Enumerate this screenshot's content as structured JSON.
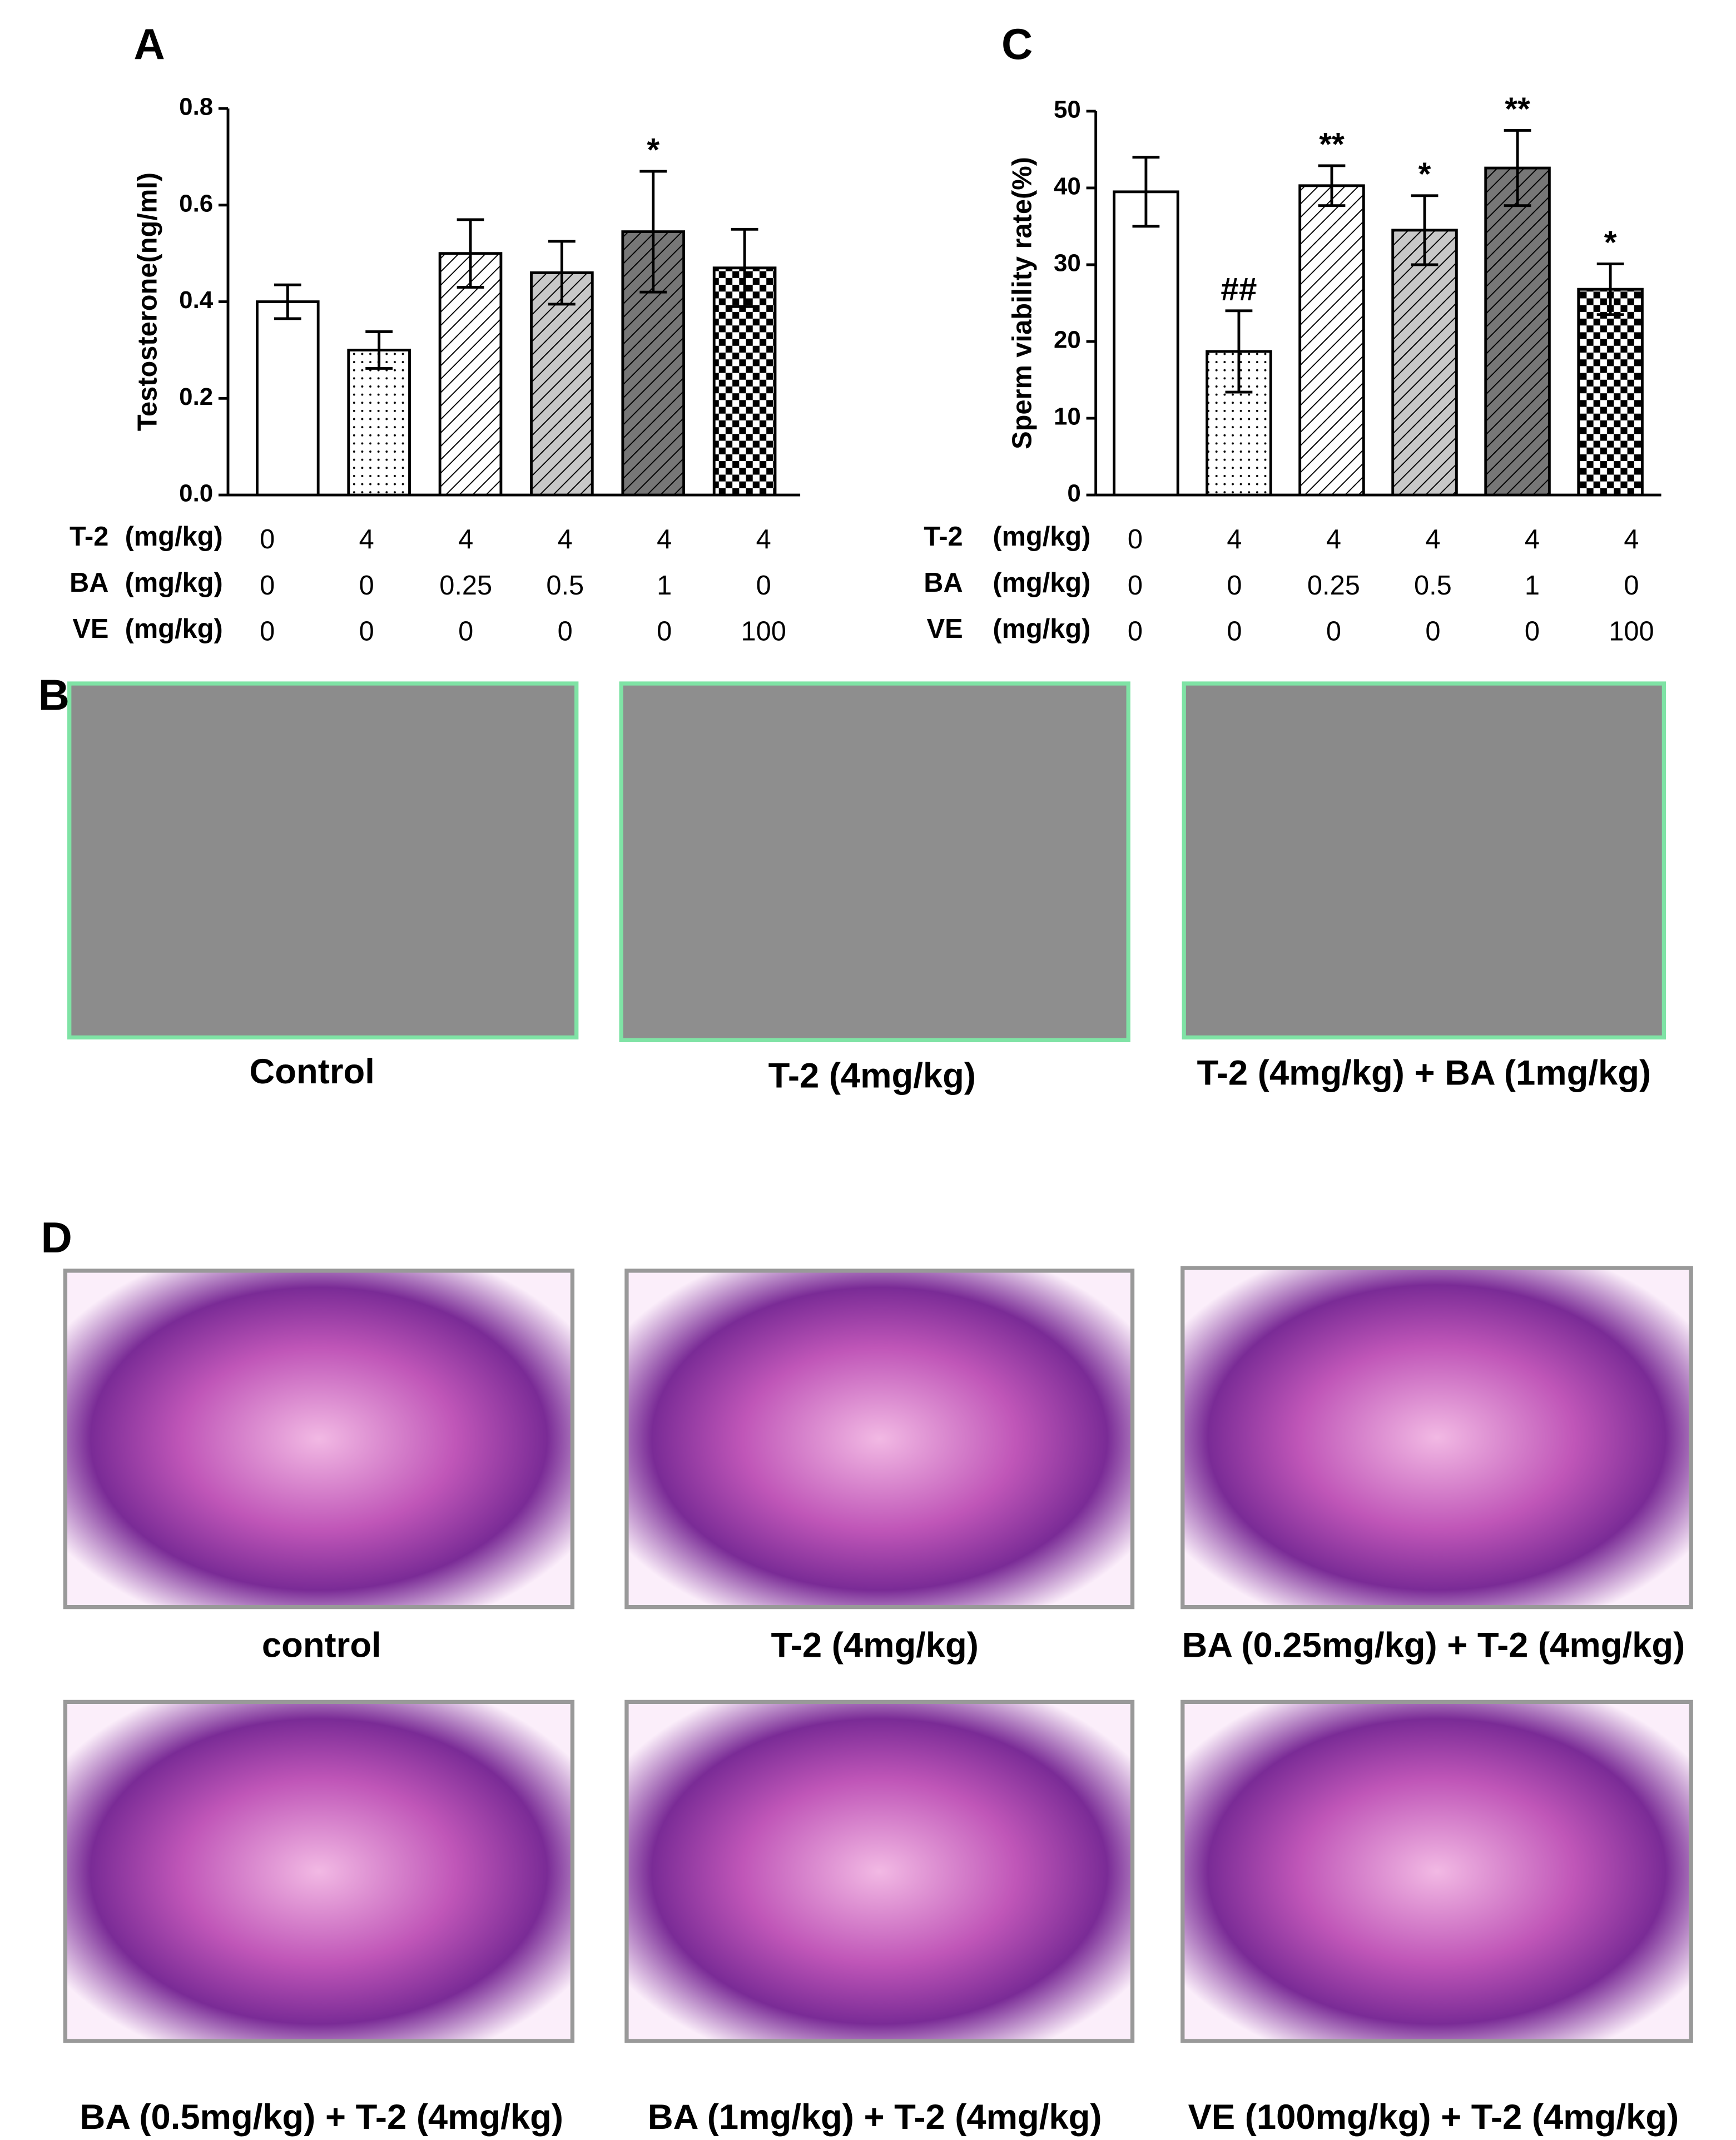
{
  "chart_data": [
    {
      "type": "bar",
      "panel": "A",
      "y_label": "Testosterone(ng/ml)",
      "categories": [
        null,
        null,
        null,
        null,
        null,
        null
      ],
      "values": [
        0.4,
        0.3,
        0.5,
        0.46,
        0.545,
        0.47
      ],
      "errors": [
        0.035,
        0.038,
        0.07,
        0.065,
        0.125,
        0.08
      ],
      "annotations": [
        null,
        null,
        null,
        null,
        "*",
        null
      ],
      "patterns": [
        "open",
        "dots",
        "hatch",
        "hatch-gray",
        "hatch-dark",
        "checker"
      ],
      "ylim": [
        0,
        0.8
      ],
      "yticks": [
        {
          "value": 0,
          "label": "0.0"
        },
        0.2,
        0.4,
        0.6,
        0.8
      ],
      "treatments": [
        {
          "name": "T-2",
          "unit": "(mg/kg)",
          "values": [
            0,
            4,
            4,
            4,
            4,
            4
          ]
        },
        {
          "name": "BA",
          "unit": "(mg/kg)",
          "values": [
            0,
            0,
            0.25,
            0.5,
            1,
            0
          ]
        },
        {
          "name": "VE",
          "unit": "(mg/kg)",
          "values": [
            0,
            0,
            0,
            0,
            0,
            100
          ]
        }
      ]
    },
    {
      "type": "bar",
      "panel": "C",
      "y_label": "Sperm viability rate(%)",
      "categories": [
        null,
        null,
        null,
        null,
        null,
        null
      ],
      "values": [
        39.5,
        18.7,
        40.3,
        34.5,
        42.6,
        26.8
      ],
      "errors": [
        4.5,
        5.3,
        2.6,
        4.5,
        4.9,
        3.3
      ],
      "annotations": [
        null,
        "##",
        "**",
        "*",
        "**",
        "*"
      ],
      "patterns": [
        "open",
        "dots",
        "hatch",
        "hatch-gray",
        "hatch-dark",
        "checker"
      ],
      "ylim": [
        0,
        50
      ],
      "yticks": [
        0,
        10,
        20,
        30,
        40,
        50
      ],
      "treatments": [
        {
          "name": "T-2",
          "unit": "(mg/kg)",
          "values": [
            0,
            4,
            4,
            4,
            4,
            4
          ]
        },
        {
          "name": "BA",
          "unit": "(mg/kg)",
          "values": [
            0,
            0,
            0.25,
            0.5,
            1,
            0
          ]
        },
        {
          "name": "VE",
          "unit": "(mg/kg)",
          "values": [
            0,
            0,
            0,
            0,
            0,
            100
          ]
        }
      ]
    }
  ],
  "panel_b": {
    "letter": "B",
    "captions": [
      "Control",
      "T-2 (4mg/kg)",
      "T-2 (4mg/kg) + BA (1mg/kg)"
    ]
  },
  "panel_d": {
    "letter": "D",
    "captions": [
      "control",
      "T-2 (4mg/kg)",
      "BA (0.25mg/kg) + T-2 (4mg/kg)",
      "BA (0.5mg/kg) + T-2 (4mg/kg)",
      "BA (1mg/kg) + T-2 (4mg/kg)",
      "VE (100mg/kg) + T-2 (4mg/kg)"
    ]
  }
}
